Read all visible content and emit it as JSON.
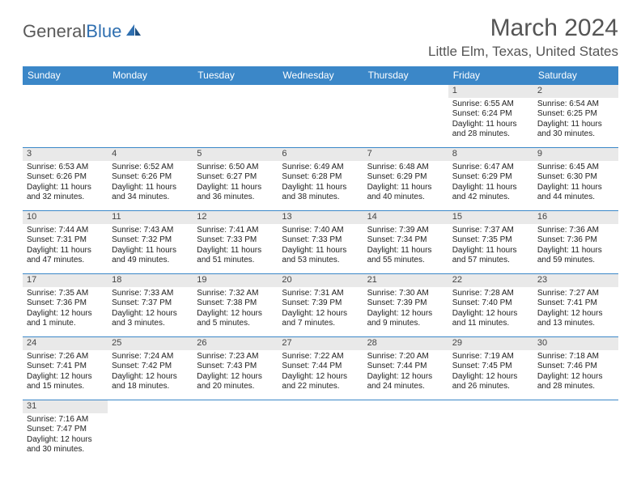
{
  "brand": {
    "part1": "General",
    "part2": "Blue"
  },
  "title": "March 2024",
  "location": "Little Elm, Texas, United States",
  "colors": {
    "header_bg": "#3b87c8",
    "header_text": "#ffffff",
    "daynum_bg": "#e9e9e9",
    "border": "#3b87c8",
    "text": "#222222",
    "brand_gray": "#5a5a5a",
    "brand_blue": "#2f6fb0"
  },
  "weekdays": [
    "Sunday",
    "Monday",
    "Tuesday",
    "Wednesday",
    "Thursday",
    "Friday",
    "Saturday"
  ],
  "weeks": [
    [
      null,
      null,
      null,
      null,
      null,
      {
        "n": "1",
        "sr": "6:55 AM",
        "ss": "6:24 PM",
        "dl": "11 hours and 28 minutes."
      },
      {
        "n": "2",
        "sr": "6:54 AM",
        "ss": "6:25 PM",
        "dl": "11 hours and 30 minutes."
      }
    ],
    [
      {
        "n": "3",
        "sr": "6:53 AM",
        "ss": "6:26 PM",
        "dl": "11 hours and 32 minutes."
      },
      {
        "n": "4",
        "sr": "6:52 AM",
        "ss": "6:26 PM",
        "dl": "11 hours and 34 minutes."
      },
      {
        "n": "5",
        "sr": "6:50 AM",
        "ss": "6:27 PM",
        "dl": "11 hours and 36 minutes."
      },
      {
        "n": "6",
        "sr": "6:49 AM",
        "ss": "6:28 PM",
        "dl": "11 hours and 38 minutes."
      },
      {
        "n": "7",
        "sr": "6:48 AM",
        "ss": "6:29 PM",
        "dl": "11 hours and 40 minutes."
      },
      {
        "n": "8",
        "sr": "6:47 AM",
        "ss": "6:29 PM",
        "dl": "11 hours and 42 minutes."
      },
      {
        "n": "9",
        "sr": "6:45 AM",
        "ss": "6:30 PM",
        "dl": "11 hours and 44 minutes."
      }
    ],
    [
      {
        "n": "10",
        "sr": "7:44 AM",
        "ss": "7:31 PM",
        "dl": "11 hours and 47 minutes."
      },
      {
        "n": "11",
        "sr": "7:43 AM",
        "ss": "7:32 PM",
        "dl": "11 hours and 49 minutes."
      },
      {
        "n": "12",
        "sr": "7:41 AM",
        "ss": "7:33 PM",
        "dl": "11 hours and 51 minutes."
      },
      {
        "n": "13",
        "sr": "7:40 AM",
        "ss": "7:33 PM",
        "dl": "11 hours and 53 minutes."
      },
      {
        "n": "14",
        "sr": "7:39 AM",
        "ss": "7:34 PM",
        "dl": "11 hours and 55 minutes."
      },
      {
        "n": "15",
        "sr": "7:37 AM",
        "ss": "7:35 PM",
        "dl": "11 hours and 57 minutes."
      },
      {
        "n": "16",
        "sr": "7:36 AM",
        "ss": "7:36 PM",
        "dl": "11 hours and 59 minutes."
      }
    ],
    [
      {
        "n": "17",
        "sr": "7:35 AM",
        "ss": "7:36 PM",
        "dl": "12 hours and 1 minute."
      },
      {
        "n": "18",
        "sr": "7:33 AM",
        "ss": "7:37 PM",
        "dl": "12 hours and 3 minutes."
      },
      {
        "n": "19",
        "sr": "7:32 AM",
        "ss": "7:38 PM",
        "dl": "12 hours and 5 minutes."
      },
      {
        "n": "20",
        "sr": "7:31 AM",
        "ss": "7:39 PM",
        "dl": "12 hours and 7 minutes."
      },
      {
        "n": "21",
        "sr": "7:30 AM",
        "ss": "7:39 PM",
        "dl": "12 hours and 9 minutes."
      },
      {
        "n": "22",
        "sr": "7:28 AM",
        "ss": "7:40 PM",
        "dl": "12 hours and 11 minutes."
      },
      {
        "n": "23",
        "sr": "7:27 AM",
        "ss": "7:41 PM",
        "dl": "12 hours and 13 minutes."
      }
    ],
    [
      {
        "n": "24",
        "sr": "7:26 AM",
        "ss": "7:41 PM",
        "dl": "12 hours and 15 minutes."
      },
      {
        "n": "25",
        "sr": "7:24 AM",
        "ss": "7:42 PM",
        "dl": "12 hours and 18 minutes."
      },
      {
        "n": "26",
        "sr": "7:23 AM",
        "ss": "7:43 PM",
        "dl": "12 hours and 20 minutes."
      },
      {
        "n": "27",
        "sr": "7:22 AM",
        "ss": "7:44 PM",
        "dl": "12 hours and 22 minutes."
      },
      {
        "n": "28",
        "sr": "7:20 AM",
        "ss": "7:44 PM",
        "dl": "12 hours and 24 minutes."
      },
      {
        "n": "29",
        "sr": "7:19 AM",
        "ss": "7:45 PM",
        "dl": "12 hours and 26 minutes."
      },
      {
        "n": "30",
        "sr": "7:18 AM",
        "ss": "7:46 PM",
        "dl": "12 hours and 28 minutes."
      }
    ],
    [
      {
        "n": "31",
        "sr": "7:16 AM",
        "ss": "7:47 PM",
        "dl": "12 hours and 30 minutes."
      },
      null,
      null,
      null,
      null,
      null,
      null
    ]
  ],
  "labels": {
    "sunrise": "Sunrise: ",
    "sunset": "Sunset: ",
    "daylight": "Daylight: "
  }
}
